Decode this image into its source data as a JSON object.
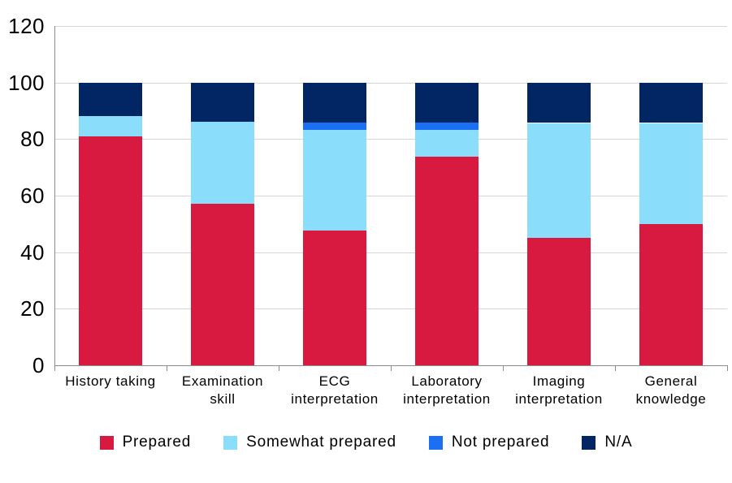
{
  "chart_data": {
    "type": "bar",
    "stacked": true,
    "title": "",
    "xlabel": "",
    "ylabel": "",
    "categories": [
      "History taking",
      "Examination\nskill",
      "ECG\ninterpretation",
      "Laboratory\ninterpretation",
      "Imaging\ninterpretation",
      "General\nknowledge"
    ],
    "series": [
      {
        "name": "Prepared",
        "color": "#D81940",
        "values": [
          81,
          57,
          47.6,
          73.8,
          45.2,
          50
        ]
      },
      {
        "name": "Somewhat prepared",
        "color": "#8BDEFB",
        "values": [
          7,
          29,
          35.7,
          9.5,
          40.5,
          35.7
        ]
      },
      {
        "name": "Not prepared",
        "color": "#1B6FF2",
        "values": [
          0,
          0,
          2.4,
          2.4,
          0,
          0
        ]
      },
      {
        "name": "N/A",
        "color": "#012663",
        "values": [
          12,
          14,
          14.3,
          14.3,
          14.3,
          14.3
        ]
      }
    ],
    "ylim": [
      0,
      120
    ],
    "yticks": [
      0,
      20,
      40,
      60,
      80,
      100,
      120
    ],
    "grid": "horizontal",
    "legend_position": "bottom",
    "colors": {
      "gridline": "#d6d6d6",
      "axis": "#8c8c8c",
      "text": "#000000",
      "background": "#ffffff"
    }
  }
}
